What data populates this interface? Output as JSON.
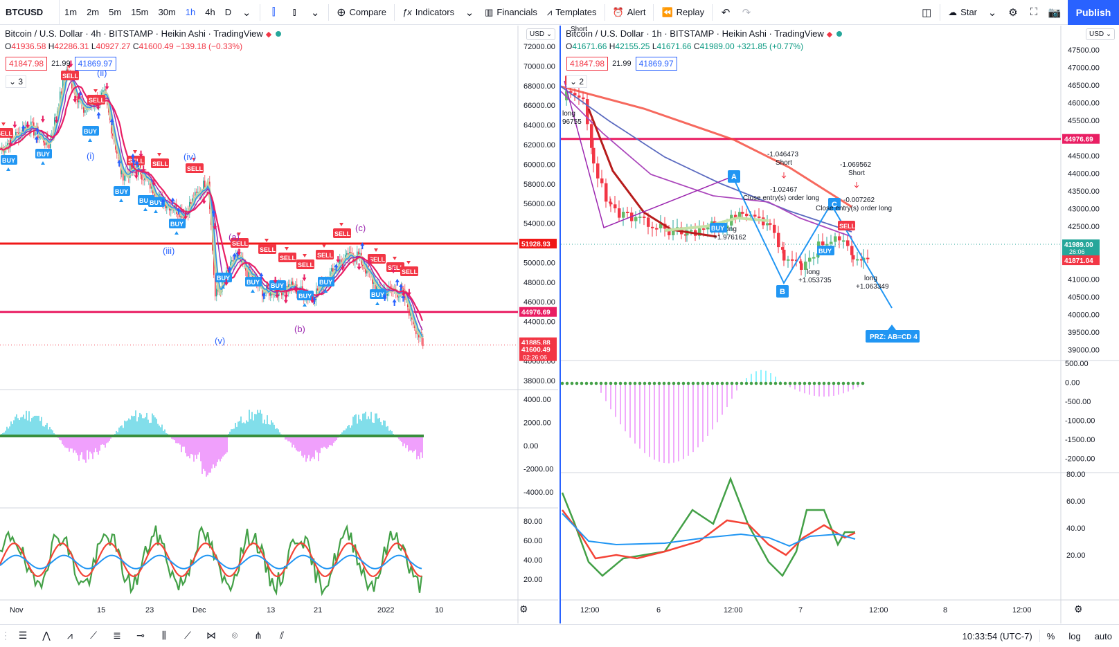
{
  "toolbar": {
    "symbol": "BTCUSD",
    "intervals": [
      "1m",
      "2m",
      "5m",
      "15m",
      "30m",
      "1h",
      "4h",
      "D"
    ],
    "active_interval": "1h",
    "compare": "Compare",
    "indicators": "Indicators",
    "financials": "Financials",
    "templates": "Templates",
    "alert": "Alert",
    "replay": "Replay",
    "layout_name": "Star",
    "publish": "Publish"
  },
  "left": {
    "title": "Bitcoin / U.S. Dollar · 4h · BITSTAMP · Heikin Ashi · TradingView",
    "ohlc": {
      "o": "41936.58",
      "h": "42286.31",
      "l": "40927.27",
      "c": "41600.49",
      "chg": "−139.18 (−0.33%)"
    },
    "bid": "41847.98",
    "spread": "21.99",
    "ask": "41869.97",
    "collapse": "3",
    "currency": "USD",
    "price_labels": [
      "72000.00",
      "70000.00",
      "68000.00",
      "66000.00",
      "64000.00",
      "62000.00",
      "60000.00",
      "58000.00",
      "56000.00",
      "54000.00",
      "52000.00",
      "50000.00",
      "48000.00",
      "46000.00",
      "44000.00",
      "42000.00",
      "40000.00",
      "38000.00"
    ],
    "level_high": "51928.93",
    "level_low": "44976.69",
    "last_price": "41885.88",
    "close_price": "41600.49",
    "countdown": "02:26:06",
    "osc_labels": [
      "4000.00",
      "2000.00",
      "0.00",
      "-2000.00",
      "-4000.00"
    ],
    "rsi_labels": [
      "80.00",
      "60.00",
      "40.00",
      "20.00"
    ],
    "time_labels": [
      "Nov",
      "15",
      "23",
      "Dec",
      "13",
      "21",
      "2022",
      "10"
    ],
    "waves": [
      "(ii)",
      "(i)",
      "(iv)",
      "(iii)",
      "(a)",
      "(c)",
      "(v)",
      "(b)"
    ],
    "buy_label": "BUY",
    "sell_label": "SELL"
  },
  "right": {
    "title": "Bitcoin / U.S. Dollar · 1h · BITSTAMP · Heikin Ashi · TradingView",
    "ohlc": {
      "o": "41671.66",
      "h": "42155.25",
      "l": "41671.66",
      "c": "41989.00",
      "chg": "+321.85 (+0.77%)"
    },
    "bid": "41847.98",
    "spread": "21.99",
    "ask": "41869.97",
    "collapse": "2",
    "currency": "USD",
    "price_labels": [
      "47500.00",
      "47000.00",
      "46500.00",
      "46000.00",
      "45500.00",
      "45000.00",
      "44500.00",
      "44000.00",
      "43500.00",
      "43000.00",
      "42500.00",
      "42000.00",
      "41500.00",
      "41000.00",
      "40500.00",
      "40000.00",
      "39500.00",
      "39000.00"
    ],
    "level": "44976.69",
    "last_price": "41989.00",
    "countdown": "26:06",
    "low_price": "41871.04",
    "osc_labels": [
      "500.00",
      "0.00",
      "-500.00",
      "-1000.00",
      "-1500.00",
      "-2000.00"
    ],
    "rsi_labels": [
      "80.00",
      "60.00",
      "40.00",
      "20.00"
    ],
    "time_labels": [
      "12:00",
      "6",
      "12:00",
      "7",
      "12:00",
      "8",
      "12:00"
    ],
    "points": [
      "A",
      "B",
      "C"
    ],
    "prz": "PRZ: AB=CD 4",
    "annotations": {
      "short1_val": "-1.046473",
      "short1": "Short",
      "short2_val": "-1.069562",
      "short2": "Short",
      "close1_val": "-1.02467",
      "close1": "Close entry(s) order long",
      "close2_val": "-0.007262",
      "close2": "Close entry(s) order long",
      "long1": "long",
      "long1_val": "+1.976162",
      "long2": "long",
      "long2_val": "+1.053735",
      "long3": "long",
      "long3_val": "+1.063349",
      "long0": "long",
      "long0_val": "96755",
      "short0": "Short",
      "buy": "BUY",
      "sell": "SELL"
    }
  },
  "status": {
    "time": "10:33:54 (UTC-7)",
    "percent": "%",
    "log": "log",
    "auto": "auto"
  }
}
